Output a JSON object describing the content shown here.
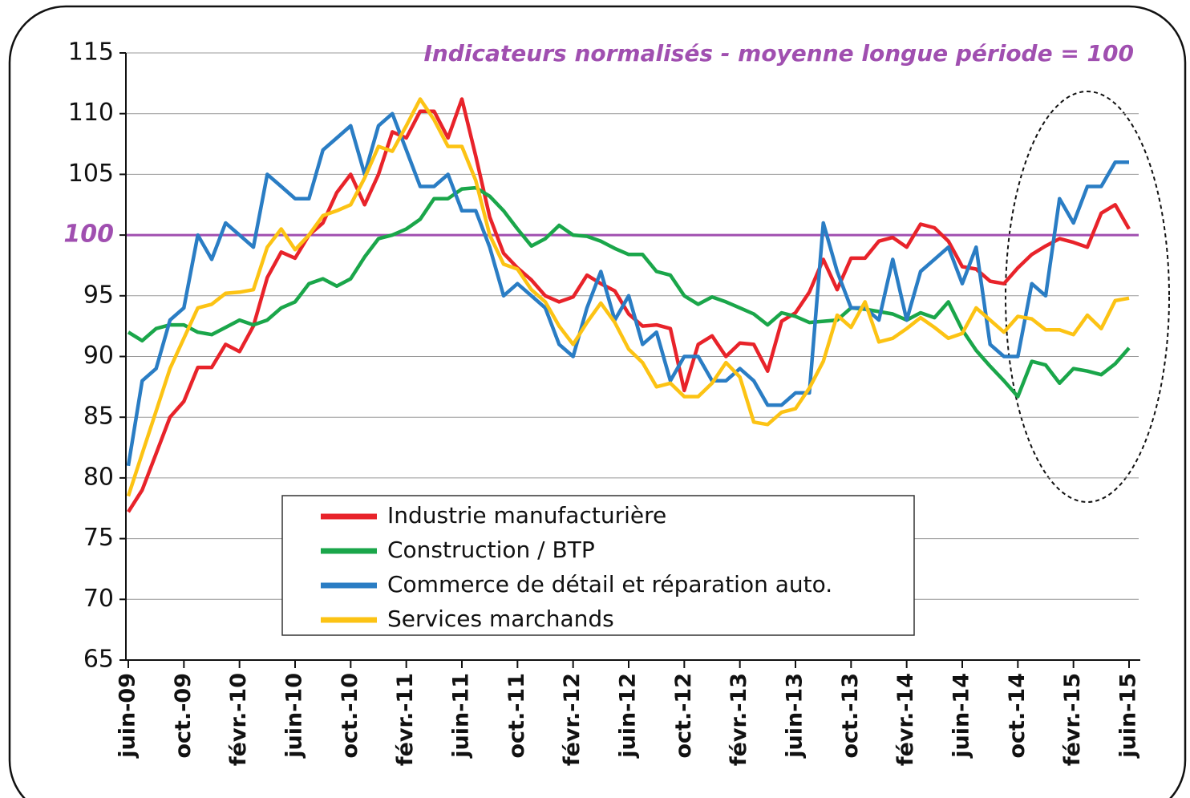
{
  "chart_data": {
    "type": "line",
    "annotation": "Indicateurs normalisés - moyenne longue période = 100",
    "categories": [
      "juin-09",
      null,
      null,
      null,
      "oct.-09",
      null,
      null,
      null,
      "févr.-10",
      null,
      null,
      null,
      "juin-10",
      null,
      null,
      null,
      "oct.-10",
      null,
      null,
      null,
      "févr.-11",
      null,
      null,
      null,
      "juin-11",
      null,
      null,
      null,
      "oct.-11",
      null,
      null,
      null,
      "févr.-12",
      null,
      null,
      null,
      "juin-12",
      null,
      null,
      null,
      "oct.-12",
      null,
      null,
      null,
      "févr.-13",
      null,
      null,
      null,
      "juin-13",
      null,
      null,
      null,
      "oct.-13",
      null,
      null,
      null,
      "févr.-14",
      null,
      null,
      null,
      "juin-14",
      null,
      null,
      null,
      "oct.-14",
      null,
      null,
      null,
      "févr.-15",
      null,
      null,
      null,
      "juin-15"
    ],
    "series": [
      {
        "name": "Industrie manufacturière",
        "color": "#e8232a",
        "values": [
          77.2,
          79,
          82,
          85,
          86.3,
          89.1,
          89.1,
          91,
          90.4,
          92.5,
          96.5,
          98.6,
          98.1,
          100,
          101,
          103.5,
          105,
          102.5,
          105,
          108.5,
          108,
          110.2,
          110.2,
          108,
          111.2,
          106.5,
          101.5,
          98.5,
          97.3,
          96.3,
          95,
          94.5,
          94.9,
          96.7,
          96,
          95.4,
          93.5,
          92.5,
          92.6,
          92.3,
          87.2,
          91,
          91.7,
          90,
          91.1,
          91,
          88.8,
          92.9,
          93.6,
          95.3,
          98,
          95.5,
          98.1,
          98.1,
          99.5,
          99.8,
          99,
          100.9,
          100.6,
          99.5,
          97.4,
          97.2,
          96.2,
          96,
          97.3,
          98.4,
          99.1,
          99.7,
          99.4,
          99,
          101.8,
          102.5,
          100.5
        ]
      },
      {
        "name": "Construction / BTP",
        "color": "#1aa64a",
        "values": [
          92,
          91.3,
          92.3,
          92.6,
          92.6,
          92,
          91.8,
          92.4,
          93,
          92.6,
          93,
          94,
          94.5,
          96,
          96.4,
          95.8,
          96.4,
          98.2,
          99.7,
          100,
          100.5,
          101.3,
          103,
          103,
          103.8,
          103.9,
          103.2,
          102,
          100.5,
          99.1,
          99.7,
          100.8,
          100,
          99.9,
          99.5,
          98.9,
          98.4,
          98.4,
          97,
          96.7,
          95,
          94.3,
          94.9,
          94.5,
          94,
          93.5,
          92.6,
          93.6,
          93.3,
          92.8,
          92.9,
          93,
          94,
          93.9,
          93.7,
          93.5,
          93,
          93.6,
          93.2,
          94.5,
          92.2,
          90.5,
          89.2,
          88,
          86.7,
          89.6,
          89.3,
          87.8,
          89,
          88.8,
          88.5,
          89.4,
          90.7
        ]
      },
      {
        "name": "Commerce de détail et réparation auto.",
        "color": "#2a7dc4",
        "values": [
          81,
          88,
          89,
          93,
          94,
          100,
          98,
          101,
          100,
          99,
          105,
          104,
          103,
          103,
          107,
          108,
          109,
          105,
          109,
          110,
          107,
          104,
          104,
          105,
          102,
          102,
          99,
          95,
          96,
          95,
          94,
          91,
          90,
          94,
          97,
          93,
          95,
          91,
          92,
          88,
          90,
          90,
          88,
          88,
          89,
          88,
          86,
          86,
          87,
          87,
          101,
          97,
          94,
          94,
          93,
          98,
          93,
          97,
          98,
          99,
          96,
          99,
          91,
          90,
          90,
          96,
          95,
          103,
          101,
          104,
          104,
          106,
          106
        ]
      },
      {
        "name": "Services marchands",
        "color": "#fcc314",
        "values": [
          78.5,
          82,
          85.5,
          89,
          91.5,
          94,
          94.3,
          95.2,
          95.3,
          95.5,
          99,
          100.5,
          98.8,
          100,
          101.6,
          102,
          102.5,
          104.7,
          107.3,
          106.9,
          109,
          111.2,
          109.5,
          107.3,
          107.3,
          104.5,
          100,
          97.6,
          97.2,
          95.5,
          94.5,
          92.5,
          91,
          92.8,
          94.4,
          92.8,
          90.6,
          89.5,
          87.5,
          87.8,
          86.7,
          86.7,
          87.8,
          89.5,
          88.3,
          84.6,
          84.4,
          85.4,
          85.7,
          87.4,
          89.6,
          93.4,
          92.4,
          94.5,
          91.2,
          91.5,
          92.3,
          93.2,
          92.4,
          91.5,
          91.9,
          94,
          93,
          92,
          93.3,
          93.1,
          92.2,
          92.2,
          91.8,
          93.4,
          92.3,
          94.6,
          94.8
        ]
      }
    ],
    "ylim": [
      65,
      115
    ],
    "yticks": [
      65,
      70,
      75,
      80,
      85,
      90,
      95,
      100,
      105,
      110,
      115
    ],
    "reference_line": {
      "value": 100,
      "color": "#a04fb0"
    },
    "grid": true,
    "legend": "bottom-center"
  }
}
